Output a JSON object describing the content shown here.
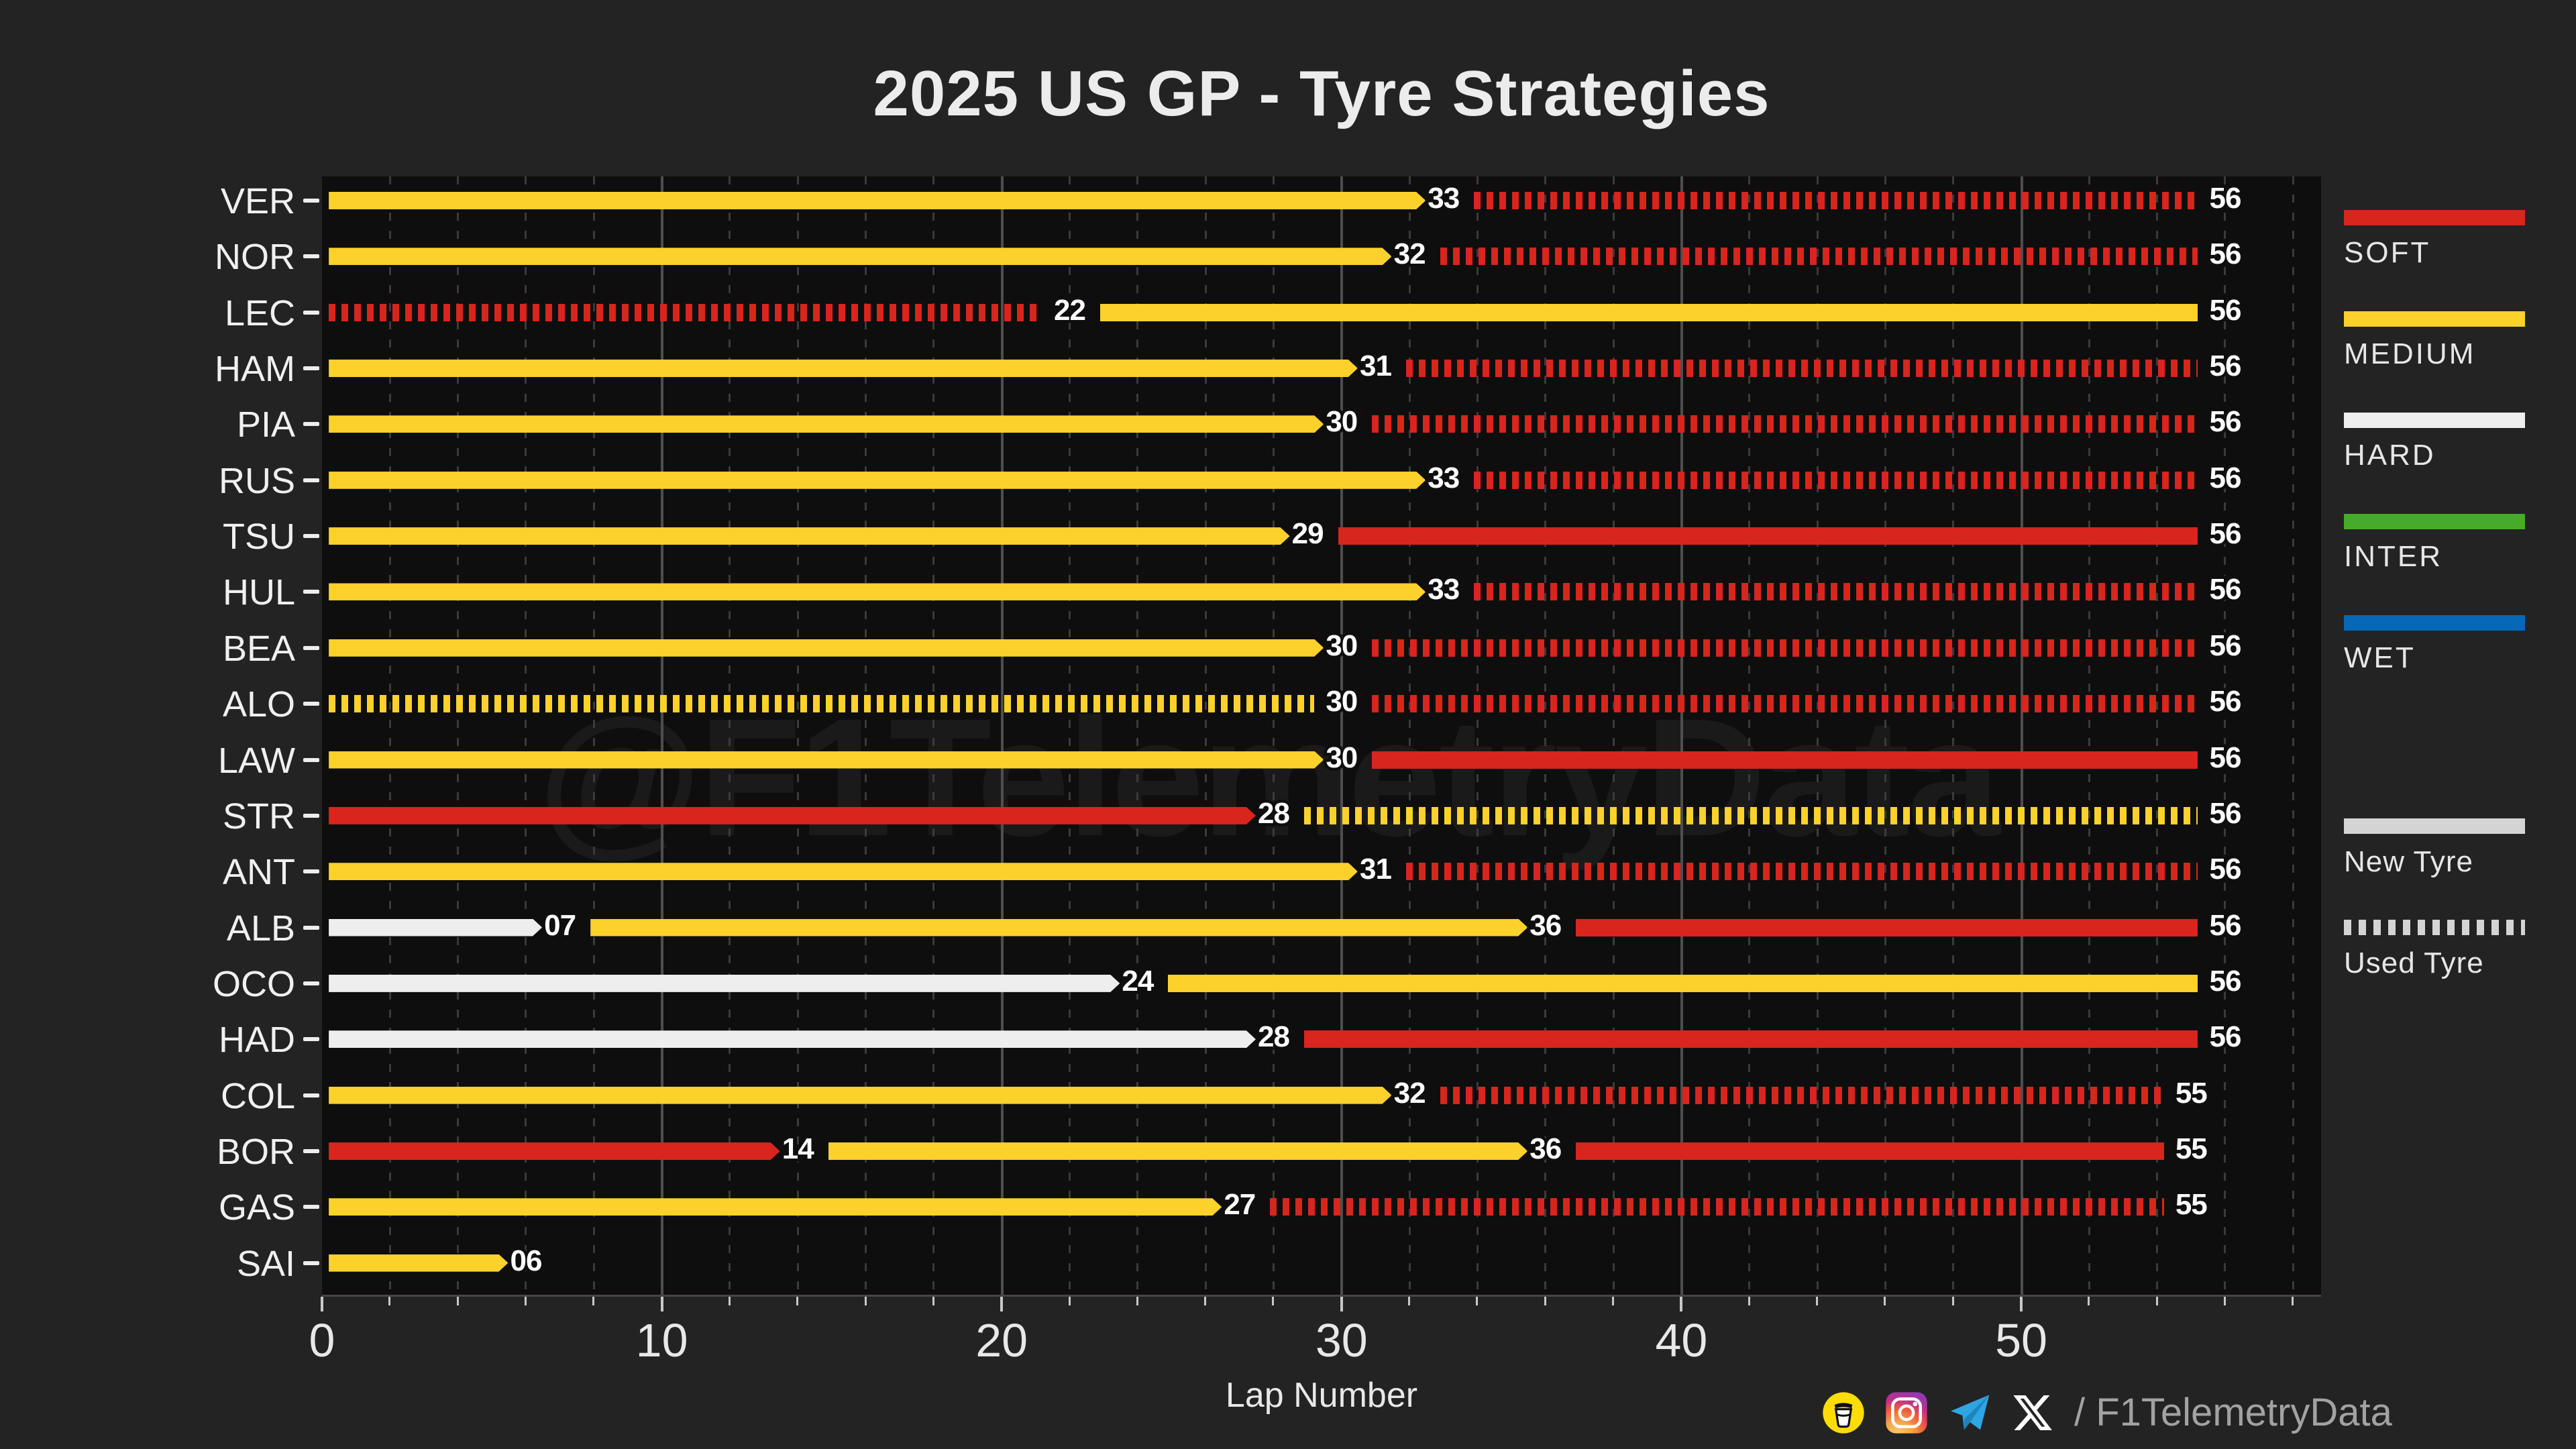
{
  "title": "2025 US GP - Tyre Strategies",
  "watermark": "@F1TelemetryData",
  "footer": {
    "handle": "/ F1TelemetryData",
    "icons": [
      "coffee-icon",
      "instagram-icon",
      "telegram-icon",
      "x-icon"
    ]
  },
  "colors": {
    "soft": "#D8251D",
    "medium": "#FCD12B",
    "hard": "#EEEEEE",
    "inter": "#44AC28",
    "wet": "#0569B8",
    "legend_gray": "#D4D4D4",
    "background": "#232323",
    "plot_background": "#0E0E0E"
  },
  "legend_compounds": [
    {
      "label": "SOFT",
      "color_key": "soft"
    },
    {
      "label": "MEDIUM",
      "color_key": "medium"
    },
    {
      "label": "HARD",
      "color_key": "hard"
    },
    {
      "label": "INTER",
      "color_key": "inter"
    },
    {
      "label": "WET",
      "color_key": "wet"
    }
  ],
  "legend_usage": [
    {
      "label": "New Tyre",
      "style": "solid"
    },
    {
      "label": "Used Tyre",
      "style": "dashed"
    }
  ],
  "chart_data": {
    "type": "bar",
    "orientation": "horizontal-stint-gantt",
    "xlabel": "Lap Number",
    "x_major_ticks": [
      0,
      10,
      20,
      30,
      40,
      50
    ],
    "x_minor_step": 2,
    "x_range": [
      0,
      58.8
    ],
    "drivers": [
      {
        "code": "VER",
        "stints": [
          {
            "compound": "medium",
            "used": false,
            "end": 33
          },
          {
            "compound": "soft",
            "used": true,
            "end": 56
          }
        ]
      },
      {
        "code": "NOR",
        "stints": [
          {
            "compound": "medium",
            "used": false,
            "end": 32
          },
          {
            "compound": "soft",
            "used": true,
            "end": 56
          }
        ]
      },
      {
        "code": "LEC",
        "stints": [
          {
            "compound": "soft",
            "used": true,
            "end": 22
          },
          {
            "compound": "medium",
            "used": false,
            "end": 56
          }
        ]
      },
      {
        "code": "HAM",
        "stints": [
          {
            "compound": "medium",
            "used": false,
            "end": 31
          },
          {
            "compound": "soft",
            "used": true,
            "end": 56
          }
        ]
      },
      {
        "code": "PIA",
        "stints": [
          {
            "compound": "medium",
            "used": false,
            "end": 30
          },
          {
            "compound": "soft",
            "used": true,
            "end": 56
          }
        ]
      },
      {
        "code": "RUS",
        "stints": [
          {
            "compound": "medium",
            "used": false,
            "end": 33
          },
          {
            "compound": "soft",
            "used": true,
            "end": 56
          }
        ]
      },
      {
        "code": "TSU",
        "stints": [
          {
            "compound": "medium",
            "used": false,
            "end": 29
          },
          {
            "compound": "soft",
            "used": false,
            "end": 56
          }
        ]
      },
      {
        "code": "HUL",
        "stints": [
          {
            "compound": "medium",
            "used": false,
            "end": 33
          },
          {
            "compound": "soft",
            "used": true,
            "end": 56
          }
        ]
      },
      {
        "code": "BEA",
        "stints": [
          {
            "compound": "medium",
            "used": false,
            "end": 30
          },
          {
            "compound": "soft",
            "used": true,
            "end": 56
          }
        ]
      },
      {
        "code": "ALO",
        "stints": [
          {
            "compound": "medium",
            "used": true,
            "end": 30
          },
          {
            "compound": "soft",
            "used": true,
            "end": 56
          }
        ]
      },
      {
        "code": "LAW",
        "stints": [
          {
            "compound": "medium",
            "used": false,
            "end": 30
          },
          {
            "compound": "soft",
            "used": false,
            "end": 56
          }
        ]
      },
      {
        "code": "STR",
        "stints": [
          {
            "compound": "soft",
            "used": false,
            "end": 28
          },
          {
            "compound": "medium",
            "used": true,
            "end": 56
          }
        ]
      },
      {
        "code": "ANT",
        "stints": [
          {
            "compound": "medium",
            "used": false,
            "end": 31
          },
          {
            "compound": "soft",
            "used": true,
            "end": 56
          }
        ]
      },
      {
        "code": "ALB",
        "stints": [
          {
            "compound": "hard",
            "used": false,
            "end": 7,
            "label": "07"
          },
          {
            "compound": "medium",
            "used": false,
            "end": 36
          },
          {
            "compound": "soft",
            "used": false,
            "end": 56
          }
        ]
      },
      {
        "code": "OCO",
        "stints": [
          {
            "compound": "hard",
            "used": false,
            "end": 24
          },
          {
            "compound": "medium",
            "used": false,
            "end": 56
          }
        ]
      },
      {
        "code": "HAD",
        "stints": [
          {
            "compound": "hard",
            "used": false,
            "end": 28
          },
          {
            "compound": "soft",
            "used": false,
            "end": 56
          }
        ]
      },
      {
        "code": "COL",
        "stints": [
          {
            "compound": "medium",
            "used": false,
            "end": 32
          },
          {
            "compound": "soft",
            "used": true,
            "end": 55
          }
        ]
      },
      {
        "code": "BOR",
        "stints": [
          {
            "compound": "soft",
            "used": false,
            "end": 14
          },
          {
            "compound": "medium",
            "used": false,
            "end": 36
          },
          {
            "compound": "soft",
            "used": false,
            "end": 55
          }
        ]
      },
      {
        "code": "GAS",
        "stints": [
          {
            "compound": "medium",
            "used": false,
            "end": 27
          },
          {
            "compound": "soft",
            "used": true,
            "end": 55
          }
        ]
      },
      {
        "code": "SAI",
        "stints": [
          {
            "compound": "medium",
            "used": false,
            "end": 6,
            "label": "06"
          }
        ]
      }
    ]
  }
}
